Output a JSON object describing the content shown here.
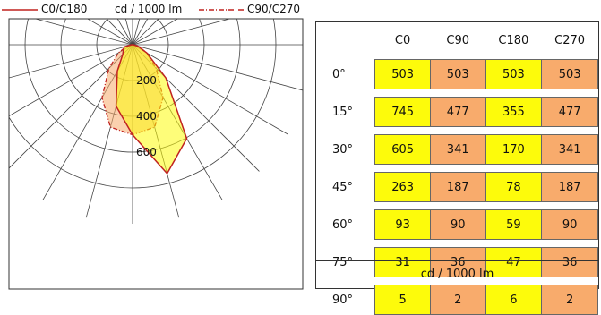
{
  "legend": {
    "series_a": "C0/C180",
    "unit": "cd / 1000 lm",
    "series_b": "C90/C270"
  },
  "colors": {
    "curve_line": "#c0221f",
    "fill_c0": "#fdfb0b",
    "fill_c90": "#f8ab6c",
    "grid": "#444444"
  },
  "chart_data": [
    {
      "type": "polar",
      "rlim": [
        0,
        800
      ],
      "ring_labels": [
        "200",
        "400",
        "600"
      ],
      "ring_values": [
        200,
        400,
        600,
        800
      ],
      "angles_deg": [
        0,
        15,
        30,
        45,
        60,
        75,
        90
      ],
      "series": [
        {
          "name": "C0/C180",
          "c0": [
            503,
            745,
            605,
            263,
            93,
            31,
            5
          ],
          "c180": [
            503,
            355,
            170,
            78,
            59,
            47,
            6
          ]
        },
        {
          "name": "C90/C270",
          "c90": [
            503,
            477,
            341,
            187,
            90,
            36,
            2
          ],
          "c270": [
            503,
            477,
            341,
            187,
            90,
            36,
            2
          ]
        }
      ]
    },
    {
      "type": "table",
      "columns": [
        "C0",
        "C90",
        "C180",
        "C270"
      ],
      "rows": [
        {
          "angle": "0°",
          "values": [
            503,
            503,
            503,
            503
          ]
        },
        {
          "angle": "15°",
          "values": [
            745,
            477,
            355,
            477
          ]
        },
        {
          "angle": "30°",
          "values": [
            605,
            341,
            170,
            341
          ]
        },
        {
          "angle": "45°",
          "values": [
            263,
            187,
            78,
            187
          ]
        },
        {
          "angle": "60°",
          "values": [
            93,
            90,
            59,
            90
          ]
        },
        {
          "angle": "75°",
          "values": [
            31,
            36,
            47,
            36
          ]
        },
        {
          "angle": "90°",
          "values": [
            5,
            2,
            6,
            2
          ]
        }
      ],
      "unit_label": "cd / 1000 lm"
    }
  ]
}
